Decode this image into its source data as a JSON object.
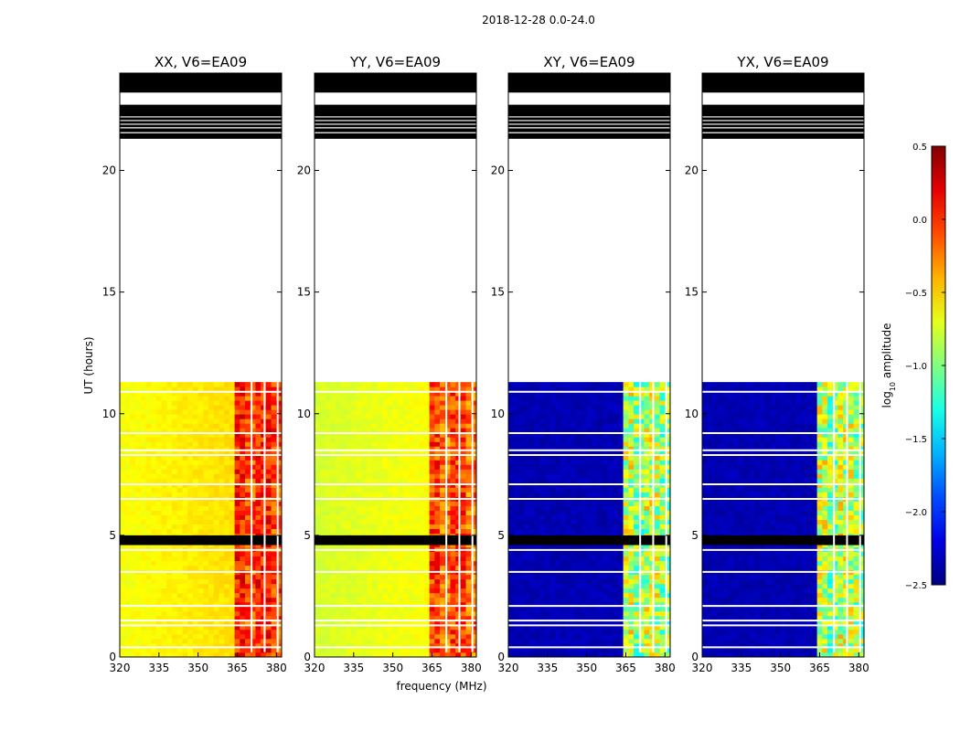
{
  "figure_title": "2018-12-28 0.0-24.0",
  "chart_data": {
    "type": "heatmap",
    "title": "2018-12-28 0.0-24.0",
    "xlabel": "frequency (MHz)",
    "ylabel": "UT (hours)",
    "xlim": [
      320,
      382
    ],
    "ylim": [
      0,
      24
    ],
    "xticks": [
      320,
      335,
      350,
      365,
      380
    ],
    "yticks": [
      0,
      5,
      10,
      15,
      20
    ],
    "colorbar": {
      "label": "log10 amplitude",
      "range": [
        -2.5,
        0.5
      ],
      "ticks": [
        -2.5,
        -2.0,
        -1.5,
        -1.0,
        -0.5,
        0.0,
        0.5
      ],
      "tick_labels": [
        "−2.5",
        "−2.0",
        "−1.5",
        "−1.0",
        "−0.5",
        "0.0",
        "0.5"
      ],
      "colormap": "jet"
    },
    "panels": [
      {
        "title": "XX, V6=EA09",
        "polarization": "XX",
        "band_level": -0.65,
        "rfi_level": 0.05,
        "rfi_start_mhz": 364
      },
      {
        "title": "YY, V6=EA09",
        "polarization": "YY",
        "band_level": -0.75,
        "rfi_level": -0.05,
        "rfi_start_mhz": 364
      },
      {
        "title": "XY, V6=EA09",
        "polarization": "XY",
        "band_level": -2.35,
        "rfi_level": -0.8,
        "rfi_start_mhz": 364
      },
      {
        "title": "YX, V6=EA09",
        "polarization": "YX",
        "band_level": -2.35,
        "rfi_level": -0.8,
        "rfi_start_mhz": 364
      }
    ],
    "data_ut_range": [
      0.0,
      11.3
    ],
    "flagged_ut_ranges": [
      [
        4.6,
        5.0
      ],
      [
        21.3,
        22.7
      ],
      [
        23.2,
        24.0
      ]
    ],
    "blank_ut_range": [
      11.3,
      21.3
    ]
  }
}
